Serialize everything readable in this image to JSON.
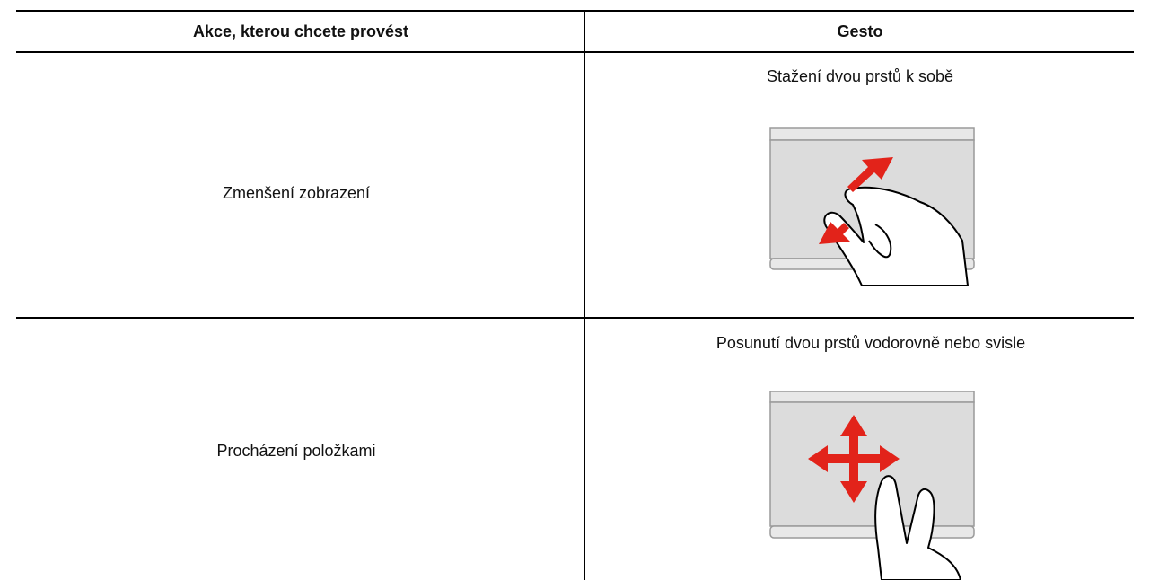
{
  "table": {
    "headers": [
      "Akce, kterou chcete provést",
      "Gesto"
    ],
    "rows": [
      [
        "Zmenšení zobrazení",
        "Stažení dvou prstů k sobě"
      ],
      [
        "Procházení položkami",
        "Posunutí dvou prstů vodorovně nebo svisle"
      ]
    ]
  }
}
